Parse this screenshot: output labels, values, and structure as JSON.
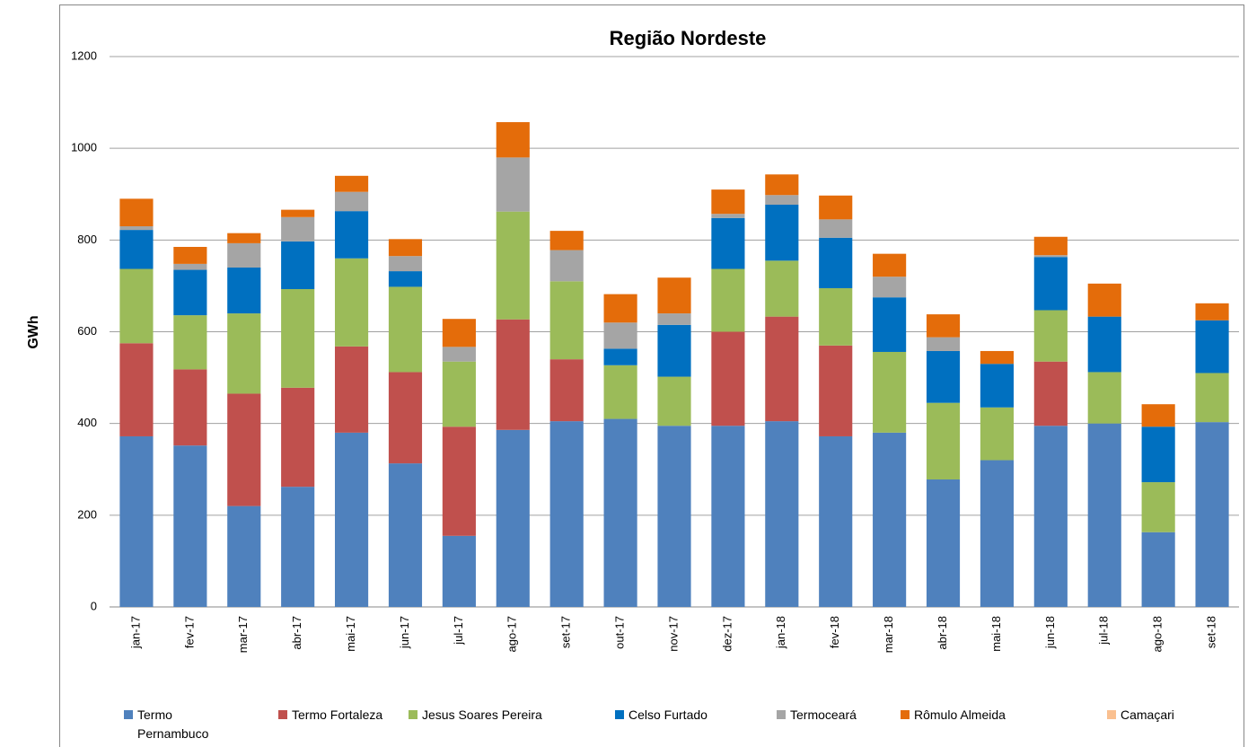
{
  "chart_data": {
    "type": "stacked-bar",
    "title": "Região Nordeste",
    "y_label": "GWh",
    "categories": [
      "jan-17",
      "fev-17",
      "mar-17",
      "abr-17",
      "mai-17",
      "jun-17",
      "jul-17",
      "ago-17",
      "set-17",
      "out-17",
      "nov-17",
      "dez-17",
      "jan-18",
      "fev-18",
      "mar-18",
      "abr-18",
      "mai-18",
      "jun-18",
      "jul-18",
      "ago-18",
      "set-18"
    ],
    "series": [
      {
        "name": "Termo Pernambuco",
        "color": "#4f81bd",
        "values": [
          372,
          352,
          220,
          262,
          380,
          313,
          155,
          386,
          405,
          410,
          395,
          395,
          405,
          372,
          380,
          278,
          320,
          395,
          400,
          163,
          403
        ]
      },
      {
        "name": "Termo Fortaleza",
        "color": "#c0504d",
        "values": [
          203,
          166,
          245,
          216,
          188,
          199,
          238,
          241,
          135,
          0,
          0,
          205,
          228,
          198,
          0,
          0,
          0,
          140,
          0,
          0,
          0
        ]
      },
      {
        "name": "Jesus Soares Pereira",
        "color": "#9bbb59",
        "values": [
          162,
          118,
          175,
          215,
          192,
          186,
          142,
          235,
          170,
          117,
          107,
          137,
          122,
          125,
          176,
          167,
          115,
          112,
          112,
          109,
          107
        ]
      },
      {
        "name": "Celso Furtado",
        "color": "#0070c0",
        "values": [
          85,
          99,
          100,
          104,
          103,
          34,
          0,
          0,
          0,
          36,
          113,
          111,
          122,
          110,
          119,
          113,
          95,
          116,
          121,
          121,
          115
        ]
      },
      {
        "name": "Termoceará",
        "color": "#a5a5a5",
        "values": [
          8,
          13,
          53,
          53,
          42,
          33,
          32,
          118,
          68,
          57,
          25,
          9,
          21,
          40,
          45,
          30,
          0,
          4,
          0,
          0,
          0
        ]
      },
      {
        "name": "Rômulo Almeida",
        "color": "#e46c0a",
        "values": [
          60,
          37,
          22,
          16,
          35,
          37,
          61,
          77,
          42,
          62,
          78,
          53,
          45,
          52,
          50,
          50,
          28,
          40,
          72,
          49,
          37
        ]
      },
      {
        "name": "Camaçari",
        "color": "#fac090",
        "values": [
          0,
          0,
          0,
          0,
          0,
          0,
          0,
          0,
          0,
          0,
          0,
          0,
          0,
          0,
          0,
          0,
          0,
          0,
          0,
          0,
          0
        ]
      }
    ],
    "ylim": [
      0,
      1200
    ],
    "yticks": [
      0,
      200,
      400,
      600,
      800,
      1000,
      1200
    ],
    "grid": true,
    "legend": "bottom"
  }
}
